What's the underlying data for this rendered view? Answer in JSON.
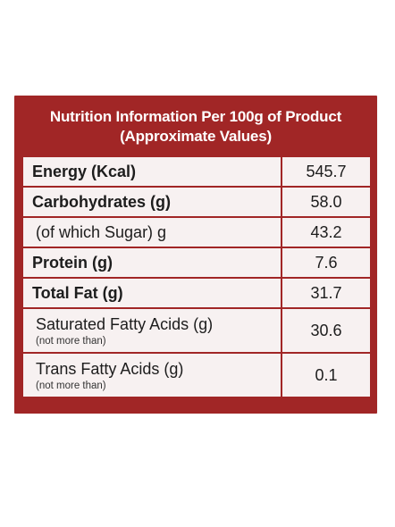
{
  "table": {
    "title_line1": "Nutrition Information Per 100g of Product",
    "title_line2": "(Approximate Values)",
    "rows": [
      {
        "label": "Energy (Kcal)",
        "value": "545.7"
      },
      {
        "label": "Carbohydrates (g)",
        "value": "58.0"
      },
      {
        "label": "(of which Sugar) g",
        "value": "43.2"
      },
      {
        "label": "Protein (g)",
        "value": "7.6"
      },
      {
        "label": "Total Fat (g)",
        "value": "31.7"
      },
      {
        "label": "Saturated Fatty Acids (g)",
        "note": "(not more than)",
        "value": "30.6"
      },
      {
        "label": "Trans Fatty Acids (g)",
        "note": "(not more than)",
        "value": "0.1"
      }
    ]
  },
  "colors": {
    "accent": "#a12626",
    "cell_bg": "#f7f1f1",
    "text": "#1d1d1d"
  }
}
